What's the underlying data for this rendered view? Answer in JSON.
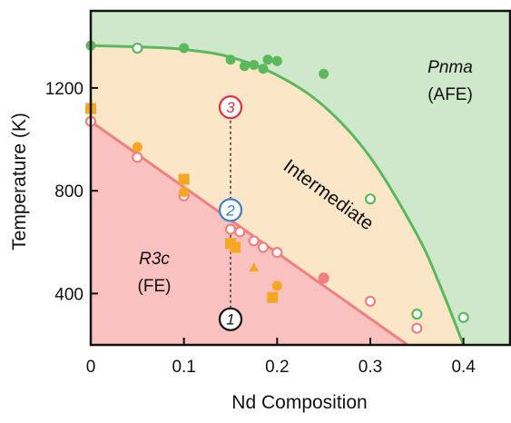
{
  "chart_data": {
    "type": "scatter",
    "title": "",
    "xlabel": "Nd Composition",
    "ylabel": "Temperature (K)",
    "xlim": [
      0,
      0.45
    ],
    "ylim": [
      200,
      1500
    ],
    "x_ticks": [
      0,
      0.1,
      0.2,
      0.3,
      0.4
    ],
    "x_tick_labels": [
      "0",
      "0.1",
      "0.2",
      "0.3",
      "0.4"
    ],
    "y_ticks": [
      400,
      800,
      1200
    ],
    "y_tick_labels": [
      "400",
      "800",
      "1200"
    ],
    "grid": false,
    "legend": "none",
    "phase_regions": [
      {
        "symbol": "Pnma",
        "label": "(AFE)",
        "color": "#cfe8cc"
      },
      {
        "symbol": "",
        "label": "Intermediate",
        "color": "#fbe7c7"
      },
      {
        "symbol": "R3c",
        "label": "(FE)",
        "color": "#f9c2c0"
      }
    ],
    "series": [
      {
        "marker": "filled-circle",
        "color": "#5cb85c",
        "points": [
          {
            "x": 0.0,
            "y": 1365
          },
          {
            "x": 0.1,
            "y": 1355
          },
          {
            "x": 0.15,
            "y": 1310
          },
          {
            "x": 0.165,
            "y": 1285
          },
          {
            "x": 0.175,
            "y": 1290
          },
          {
            "x": 0.185,
            "y": 1275
          },
          {
            "x": 0.19,
            "y": 1310
          },
          {
            "x": 0.2,
            "y": 1305
          },
          {
            "x": 0.25,
            "y": 1255
          }
        ]
      },
      {
        "marker": "open-circle",
        "color": "#5cb85c",
        "points": [
          {
            "x": 0.05,
            "y": 1355
          },
          {
            "x": 0.3,
            "y": 768
          },
          {
            "x": 0.35,
            "y": 320
          },
          {
            "x": 0.4,
            "y": 307
          }
        ]
      },
      {
        "marker": "open-circle",
        "color": "#f08080",
        "points": [
          {
            "x": 0.0,
            "y": 1070
          },
          {
            "x": 0.05,
            "y": 930
          },
          {
            "x": 0.1,
            "y": 780
          },
          {
            "x": 0.15,
            "y": 650
          },
          {
            "x": 0.16,
            "y": 640
          },
          {
            "x": 0.175,
            "y": 605
          },
          {
            "x": 0.185,
            "y": 580
          },
          {
            "x": 0.2,
            "y": 560
          },
          {
            "x": 0.25,
            "y": 460
          },
          {
            "x": 0.3,
            "y": 370
          },
          {
            "x": 0.35,
            "y": 265
          }
        ]
      },
      {
        "marker": "filled-circle",
        "color": "#f08080",
        "points": [
          {
            "x": 0.25,
            "y": 462
          }
        ]
      },
      {
        "marker": "filled-circle",
        "color": "#f5a623",
        "points": [
          {
            "x": 0.05,
            "y": 970
          },
          {
            "x": 0.1,
            "y": 795
          },
          {
            "x": 0.2,
            "y": 430
          }
        ]
      },
      {
        "marker": "filled-square",
        "color": "#f5a623",
        "points": [
          {
            "x": 0.0,
            "y": 1120
          },
          {
            "x": 0.1,
            "y": 845
          },
          {
            "x": 0.15,
            "y": 595
          },
          {
            "x": 0.155,
            "y": 580
          },
          {
            "x": 0.195,
            "y": 385
          }
        ]
      },
      {
        "marker": "filled-triangle",
        "color": "#f5a623",
        "points": [
          {
            "x": 0.175,
            "y": 500
          }
        ]
      }
    ],
    "boundaries": [
      {
        "color": "#5cb85c",
        "points": [
          [
            0,
            1365
          ],
          [
            0.05,
            1360
          ],
          [
            0.1,
            1350
          ],
          [
            0.15,
            1320
          ],
          [
            0.2,
            1250
          ],
          [
            0.25,
            1130
          ],
          [
            0.3,
            930
          ],
          [
            0.35,
            630
          ],
          [
            0.375,
            430
          ],
          [
            0.4,
            200
          ]
        ]
      },
      {
        "color": "#f08080",
        "points": [
          [
            0,
            1070
          ],
          [
            0.34,
            200
          ]
        ]
      }
    ],
    "annotations": [
      {
        "label": "1",
        "x": 0.15,
        "y": 300,
        "color": "#111111"
      },
      {
        "label": "2",
        "x": 0.15,
        "y": 725,
        "color": "#3a7fd0"
      },
      {
        "label": "3",
        "x": 0.15,
        "y": 1125,
        "color": "#e03040"
      }
    ],
    "path_line": {
      "x": 0.15,
      "y_from": 300,
      "y_to": 1125
    }
  }
}
